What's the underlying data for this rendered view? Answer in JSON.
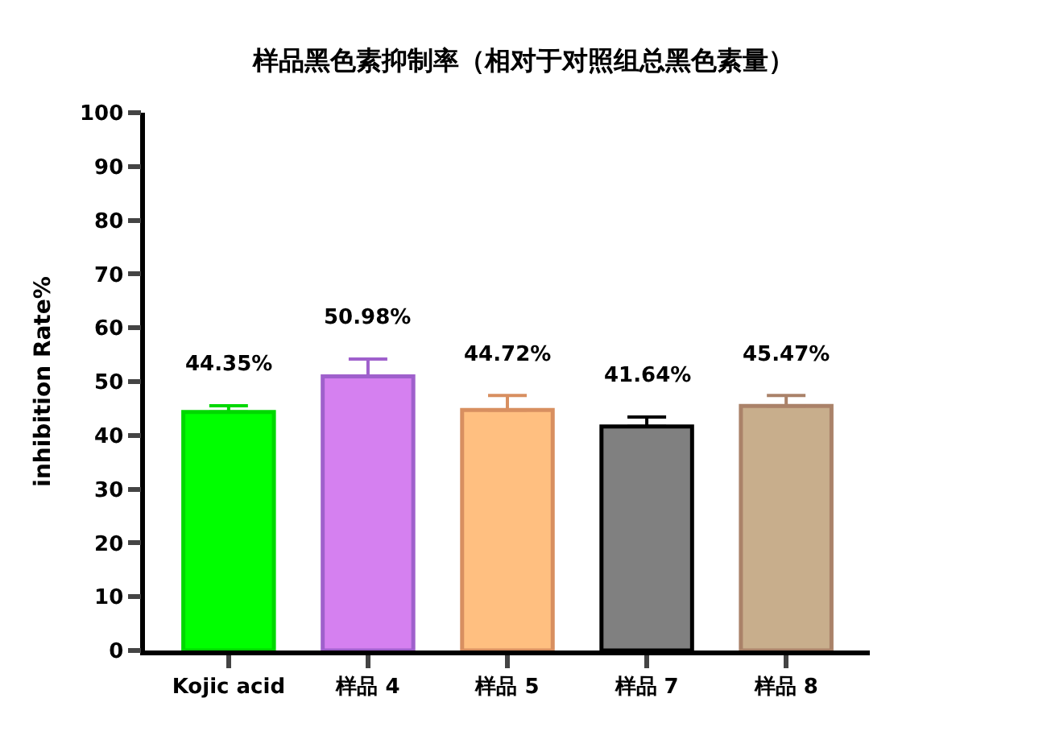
{
  "chart_data": {
    "type": "bar",
    "title": "样品黑色素抑制率（相对于对照组总黑色素量）",
    "ylabel": "inhibition Rate%",
    "categories": [
      "Kojic acid",
      "样品 4",
      "样品 5",
      "样品 7",
      "样品 8"
    ],
    "values": [
      44.35,
      50.98,
      44.72,
      41.64,
      45.47
    ],
    "colors": [
      "#00ff00",
      "#d580f0",
      "#ffbf80",
      "#808080",
      "#c8ae8c"
    ],
    "errors": [
      [
        44.35,
        45.5
      ],
      [
        50.98,
        54.2
      ],
      [
        44.72,
        47.4
      ],
      [
        41.64,
        43.4
      ],
      [
        45.47,
        47.4
      ]
    ],
    "value_labels": [
      "44.35%",
      "50.98%",
      "44.72%",
      "41.64%",
      "45.47%"
    ],
    "ylim": [
      0,
      100
    ],
    "yticks": [
      0,
      10,
      20,
      30,
      40,
      50,
      60,
      70,
      80,
      90,
      100
    ]
  }
}
